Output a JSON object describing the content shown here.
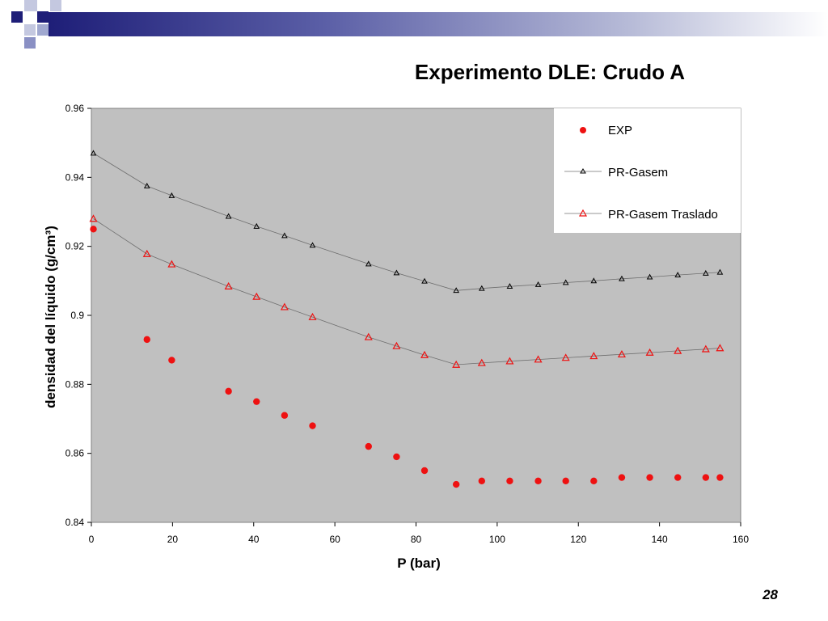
{
  "slide": {
    "title": "Experimento DLE: Crudo A",
    "page_number": "28"
  },
  "colors": {
    "plot_background": "#c0c0c0",
    "exp_series": "#ee1111",
    "pr_gasem_series": "#000000",
    "pr_traslado_series": "#ee1111",
    "header_dark": "#1e1e78",
    "header_light": "#a0a8d0"
  },
  "chart_data": {
    "type": "scatter",
    "title": "Experimento DLE: Crudo A",
    "xlabel": "P (bar)",
    "ylabel": "densidad del líquido (g/cm³)",
    "xlim": [
      0,
      160
    ],
    "ylim": [
      0.84,
      0.96
    ],
    "x_ticks": [
      "0",
      "20",
      "40",
      "60",
      "80",
      "100",
      "120",
      "140",
      "160"
    ],
    "y_ticks": [
      "0.84",
      "0.86",
      "0.88",
      "0.9",
      "0.92",
      "0.94",
      "0.96"
    ],
    "grid": false,
    "legend_position": "top-right",
    "series": [
      {
        "name": "EXP",
        "marker": "filled-circle",
        "line": false,
        "x": [
          0.5,
          13.7,
          19.8,
          33.8,
          40.7,
          47.6,
          54.5,
          68.3,
          75.2,
          82.1,
          89.9,
          96.2,
          103.1,
          110.1,
          116.9,
          123.8,
          130.7,
          137.6,
          144.5,
          151.4,
          154.9
        ],
        "y": [
          0.925,
          0.893,
          0.887,
          0.878,
          0.875,
          0.871,
          0.868,
          0.862,
          0.859,
          0.855,
          0.851,
          0.852,
          0.852,
          0.852,
          0.852,
          0.852,
          0.853,
          0.853,
          0.853,
          0.853,
          0.853
        ]
      },
      {
        "name": "PR-Gasem",
        "marker": "open-triangle",
        "line": true,
        "x": [
          0.5,
          13.7,
          19.8,
          33.8,
          40.7,
          47.6,
          54.5,
          68.3,
          75.2,
          82.1,
          89.9,
          96.2,
          103.1,
          110.1,
          116.9,
          123.8,
          130.7,
          137.6,
          144.5,
          151.4,
          154.9
        ],
        "y": [
          0.947,
          0.9375,
          0.9347,
          0.9287,
          0.9258,
          0.9231,
          0.9203,
          0.9149,
          0.9123,
          0.9099,
          0.9072,
          0.9078,
          0.9084,
          0.9089,
          0.9095,
          0.91,
          0.9106,
          0.9111,
          0.9117,
          0.9122,
          0.9125
        ]
      },
      {
        "name": "PR-Gasem Traslado",
        "marker": "open-triangle",
        "line": true,
        "x": [
          0.5,
          13.7,
          19.8,
          33.8,
          40.7,
          47.6,
          54.5,
          68.3,
          75.2,
          82.1,
          89.9,
          96.2,
          103.1,
          110.1,
          116.9,
          123.8,
          130.7,
          137.6,
          144.5,
          151.4,
          154.9
        ],
        "y": [
          0.928,
          0.9178,
          0.9148,
          0.9084,
          0.9054,
          0.9024,
          0.8995,
          0.8937,
          0.8911,
          0.8885,
          0.8857,
          0.8862,
          0.8867,
          0.8872,
          0.8877,
          0.8882,
          0.8887,
          0.8892,
          0.8897,
          0.8902,
          0.8905
        ]
      }
    ]
  }
}
